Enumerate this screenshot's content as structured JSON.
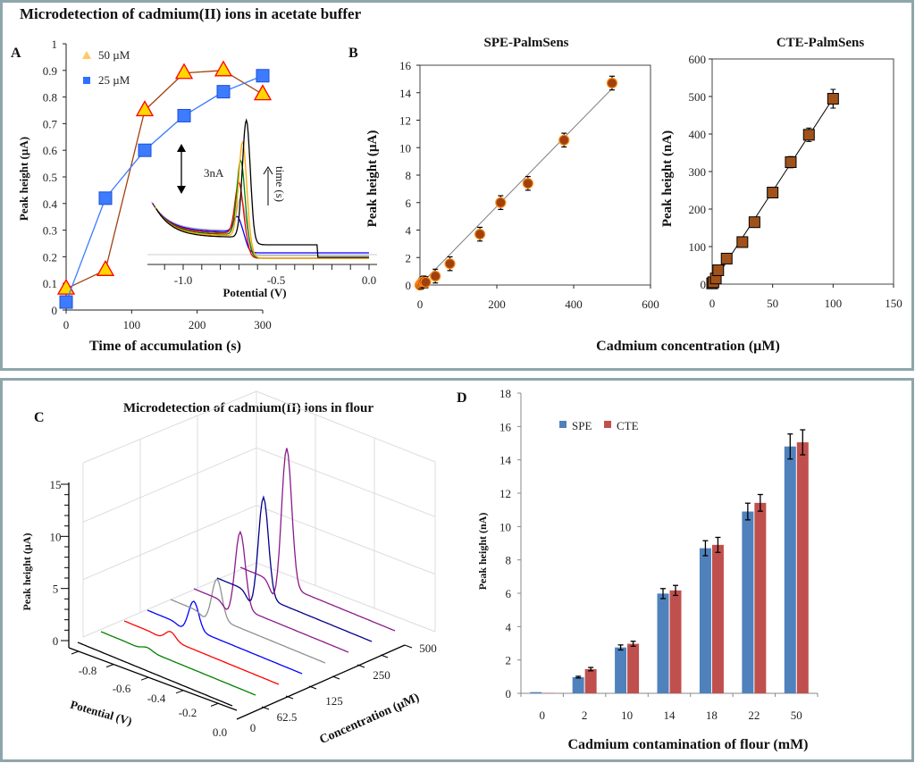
{
  "figure": {
    "top_title": "Microdetection of cadmium(II) ions in acetate buffer",
    "border_color": "#8ea6ab",
    "shared_xlabel_B": "Cadmium concentration  (µM)"
  },
  "chart_data": [
    {
      "panel": "A",
      "type": "line",
      "xlabel": "Time of accumulation  (s)",
      "ylabel": "Peak height (µA)",
      "xlim": [
        0,
        300
      ],
      "ylim": [
        0,
        1
      ],
      "xticks": [
        0,
        100,
        200,
        300
      ],
      "yticks": [
        0,
        0.1,
        0.2,
        0.3,
        0.4,
        0.5,
        0.6,
        0.7,
        0.8,
        0.9,
        1
      ],
      "legend_position": "top-left",
      "series": [
        {
          "name": "50 µM",
          "marker": "triangle",
          "color": "#a0410d",
          "marker_fill": "#ffd700",
          "marker_stroke": "#ff0000",
          "legend_color": "#ffc966",
          "x": [
            0,
            60,
            120,
            180,
            240,
            300
          ],
          "y": [
            0.08,
            0.15,
            0.75,
            0.89,
            0.9,
            0.81
          ]
        },
        {
          "name": "25 µM",
          "marker": "square",
          "color": "#3a7bff",
          "marker_fill": "#3d7bff",
          "marker_stroke": "#1f4fd6",
          "legend_color": "#2f6fff",
          "x": [
            0,
            60,
            120,
            180,
            240,
            300
          ],
          "y": [
            0.03,
            0.42,
            0.6,
            0.73,
            0.82,
            0.88
          ]
        }
      ],
      "inset": {
        "type": "line",
        "xlabel": "Potential (V)",
        "xticks": [
          "-1.0",
          "-0.5",
          "0.0"
        ],
        "scale_bar": "3nA",
        "arrow_label": "time (s)",
        "traces": [
          {
            "color": "#b0b0b0",
            "peak_potential": -0.69,
            "peak_nA": 2.1
          },
          {
            "color": "#0000ff",
            "peak_potential": -0.71,
            "peak_nA": 1.0
          },
          {
            "color": "#ff0000",
            "peak_potential": -0.7,
            "peak_nA": 3.3
          },
          {
            "color": "#008000",
            "peak_potential": -0.69,
            "peak_nA": 4.8
          },
          {
            "color": "#ffa500",
            "peak_potential": -0.68,
            "peak_nA": 6.1
          },
          {
            "color": "#000000",
            "peak_potential": -0.66,
            "peak_nA": 7.6
          }
        ]
      }
    },
    {
      "panel": "B",
      "type": "scatter",
      "title": "SPE-PalmSens",
      "ylabel": "Peak height (µA)",
      "xlim": [
        0,
        600
      ],
      "ylim": [
        0,
        16
      ],
      "xticks": [
        0,
        200,
        400,
        600
      ],
      "yticks": [
        0,
        2,
        4,
        6,
        8,
        10,
        12,
        14,
        16
      ],
      "marker_color": "#a0410d",
      "fit_line": {
        "x": [
          0,
          500
        ],
        "y": [
          0,
          14.3
        ],
        "color": "#808080"
      },
      "x": [
        0,
        3,
        6,
        10,
        15,
        40,
        78,
        156,
        210,
        281,
        375,
        500
      ],
      "y": [
        0,
        0.1,
        0.2,
        0.25,
        0.2,
        0.65,
        1.55,
        3.7,
        6.0,
        7.4,
        10.55,
        14.7
      ],
      "error": [
        0.3,
        0.4,
        0.4,
        0.4,
        0.4,
        0.5,
        0.5,
        0.5,
        0.5,
        0.5,
        0.5,
        0.5
      ]
    },
    {
      "panel": "B-right",
      "type": "scatter",
      "title": "CTE-PalmSens",
      "ylabel": "Peak height (nA)",
      "xlim": [
        0,
        150
      ],
      "ylim": [
        0,
        600
      ],
      "xticks": [
        0,
        50,
        100,
        150
      ],
      "yticks": [
        0,
        100,
        200,
        300,
        400,
        500,
        600
      ],
      "marker_color": "#a0521a",
      "fit_line": {
        "x": [
          0,
          100
        ],
        "y": [
          0,
          495
        ],
        "color": "#000000"
      },
      "x": [
        0,
        1,
        3,
        5,
        12,
        25,
        35,
        50,
        65,
        80,
        100
      ],
      "y": [
        2,
        5,
        15,
        37,
        68,
        112,
        165,
        244,
        325,
        398,
        494
      ],
      "error": [
        3,
        3,
        4,
        5,
        5,
        6,
        8,
        8,
        15,
        18,
        25
      ]
    },
    {
      "panel": "C",
      "type": "line",
      "title": "Microdetection of cadmium(II) ions in flour",
      "xlabel": "Potential (V)",
      "ylabel": "Peak height (µA)",
      "zlabel": "Concentration (µM)",
      "potential_ticks": [
        "-0.8",
        "-0.6",
        "-0.4",
        "-0.2",
        "0.0"
      ],
      "height_ticks": [
        0,
        5,
        10,
        15
      ],
      "concentration_ticks": [
        "0",
        "62.5",
        "125",
        "250",
        "500"
      ],
      "traces": [
        {
          "color": "#000000",
          "peak_uA": 0
        },
        {
          "color": "#008000",
          "peak_uA": 0.3
        },
        {
          "color": "#ff0000",
          "peak_uA": 0.8
        },
        {
          "color": "#0000ff",
          "peak_uA": 2.7
        },
        {
          "color": "#909090",
          "peak_uA": 3.8
        },
        {
          "color": "#8b1a8b",
          "peak_uA": 7.3
        },
        {
          "color": "#00008b",
          "peak_uA": 9.6
        },
        {
          "color": "#8b1a8b",
          "peak_uA": 13.3
        }
      ]
    },
    {
      "panel": "D",
      "type": "bar",
      "xlabel": "Cadmium contamination  of flour (mM)",
      "ylabel": "Peak height (nA)",
      "ylim": [
        0,
        18
      ],
      "yticks": [
        0,
        2,
        4,
        6,
        8,
        10,
        12,
        14,
        16,
        18
      ],
      "categories": [
        "0",
        "2",
        "10",
        "14",
        "18",
        "22",
        "50"
      ],
      "legend_position": "top-left",
      "series": [
        {
          "name": "SPE",
          "color": "#4f81bd",
          "values": [
            0.07,
            0.97,
            2.75,
            5.98,
            8.7,
            10.9,
            14.8
          ],
          "error": [
            0,
            0.05,
            0.15,
            0.3,
            0.45,
            0.5,
            0.75
          ]
        },
        {
          "name": "CTE",
          "color": "#c0504d",
          "values": [
            0.02,
            1.45,
            2.97,
            6.17,
            8.9,
            11.42,
            15.05
          ],
          "error": [
            0,
            0.1,
            0.15,
            0.3,
            0.45,
            0.5,
            0.75
          ]
        }
      ]
    }
  ],
  "panel_labels": {
    "a": "A",
    "b": "B",
    "c": "C",
    "d": "D"
  }
}
